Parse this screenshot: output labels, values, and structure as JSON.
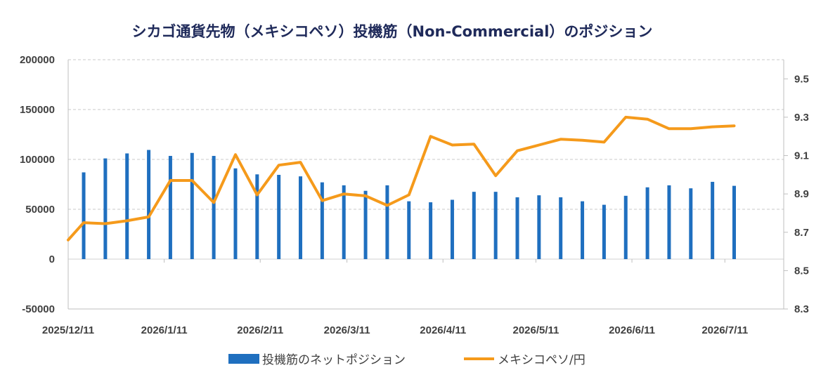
{
  "chart_data": {
    "type": "bar+line",
    "title": "シカゴ通貨先物（メキシコペソ）投機筋（Non-Commercial）のポジション",
    "x_tick_labels": [
      "2025/12/11",
      "2026/1/11",
      "2026/2/11",
      "2026/3/11",
      "2026/4/11",
      "2026/5/11",
      "2026/6/11",
      "2026/7/11"
    ],
    "y_left": {
      "ticks": [
        "200000",
        "150000",
        "100000",
        "50000",
        "0",
        "-50000"
      ],
      "min": -50000,
      "max": 200000,
      "step": 50000
    },
    "y_right": {
      "ticks": [
        "9.5",
        "9.3",
        "9.1",
        "8.9",
        "8.7",
        "8.5",
        "8.3"
      ],
      "min": 8.3,
      "max": 9.6,
      "values_shown": [
        9.5,
        9.3,
        9.1,
        8.9,
        8.7,
        8.5,
        8.3
      ]
    },
    "x_start": "2025-12-11",
    "x_end": "2026-07-30",
    "series": [
      {
        "name": "投機筋のネットポジション",
        "type": "bar",
        "axis": "left",
        "color": "#1f6fbf",
        "dates": [
          "2025-12-16",
          "2025-12-23",
          "2025-12-30",
          "2026-01-06",
          "2026-01-13",
          "2026-01-20",
          "2026-01-27",
          "2026-02-03",
          "2026-02-10",
          "2026-02-17",
          "2026-02-24",
          "2026-03-03",
          "2026-03-10",
          "2026-03-17",
          "2026-03-24",
          "2026-03-31",
          "2026-04-07",
          "2026-04-14",
          "2026-04-21",
          "2026-04-28",
          "2026-05-05",
          "2026-05-12",
          "2026-05-19",
          "2026-05-26",
          "2026-06-02",
          "2026-06-09",
          "2026-06-16",
          "2026-06-23",
          "2026-06-30",
          "2026-07-07",
          "2026-07-14"
        ],
        "values": [
          87000,
          101000,
          106000,
          109500,
          103500,
          106500,
          103500,
          91000,
          85000,
          84500,
          83000,
          77000,
          74000,
          68500,
          74000,
          58000,
          57000,
          59500,
          67500,
          67500,
          62000,
          64000,
          62000,
          58000,
          54500,
          63500,
          72000,
          74000,
          71000,
          77500,
          73500
        ]
      },
      {
        "name": "メキシコペソ/円",
        "type": "line",
        "axis": "right",
        "color": "#f59a1b",
        "dates": [
          "2025-12-11",
          "2025-12-16",
          "2025-12-23",
          "2025-12-30",
          "2026-01-06",
          "2026-01-13",
          "2026-01-20",
          "2026-01-27",
          "2026-02-03",
          "2026-02-10",
          "2026-02-17",
          "2026-02-24",
          "2026-03-03",
          "2026-03-10",
          "2026-03-17",
          "2026-03-24",
          "2026-03-31",
          "2026-04-07",
          "2026-04-14",
          "2026-04-21",
          "2026-04-28",
          "2026-05-05",
          "2026-05-12",
          "2026-05-19",
          "2026-05-26",
          "2026-06-02",
          "2026-06-09",
          "2026-06-16",
          "2026-06-23",
          "2026-06-30",
          "2026-07-07",
          "2026-07-14"
        ],
        "values": [
          8.66,
          8.75,
          8.745,
          8.76,
          8.78,
          8.97,
          8.97,
          8.855,
          9.105,
          8.895,
          9.05,
          9.065,
          8.865,
          8.9,
          8.89,
          8.84,
          8.895,
          9.2,
          9.155,
          9.16,
          8.995,
          9.125,
          9.155,
          9.185,
          9.18,
          9.17,
          9.3,
          9.29,
          9.24,
          9.24,
          9.25,
          9.255
        ]
      }
    ],
    "legend": {
      "placement": "bottom-center"
    },
    "grid": {
      "horizontal": true,
      "style": "dashed"
    }
  }
}
